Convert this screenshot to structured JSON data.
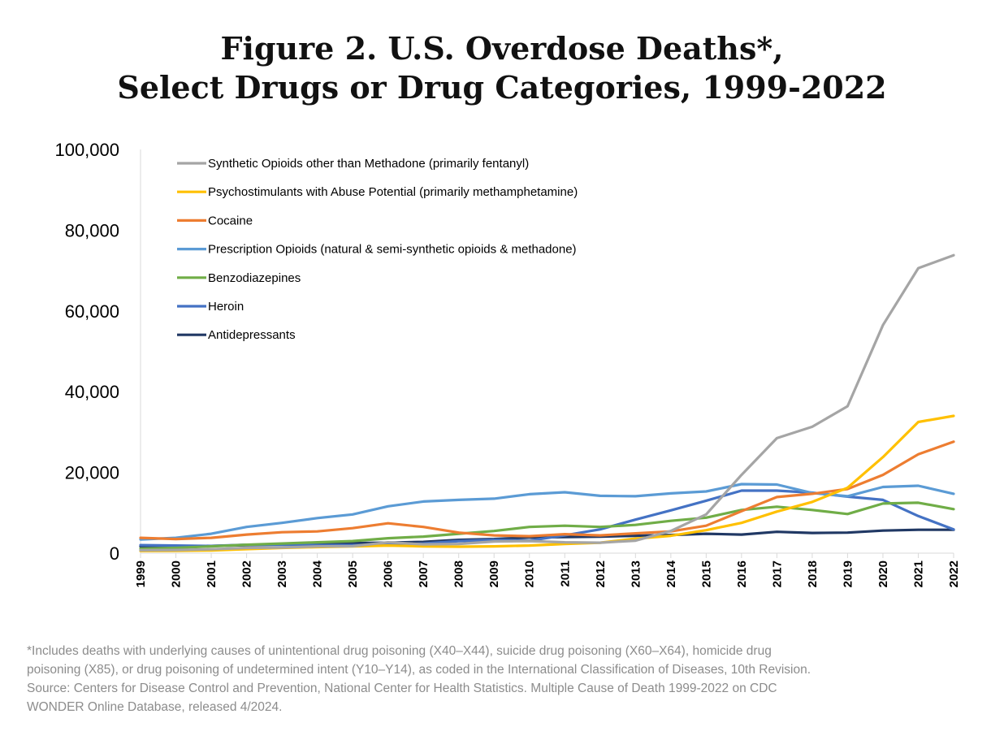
{
  "title_lines": [
    "Figure 2. U.S. Overdose Deaths*,",
    "Select Drugs or Drug Categories, 1999-2022"
  ],
  "footnote_lines": [
    "*Includes deaths with underlying causes of unintentional drug poisoning (X40–X44), suicide drug poisoning (X60–X64), homicide drug",
    "poisoning (X85), or drug poisoning of undetermined intent (Y10–Y14), as coded in the International Classification of Diseases, 10th Revision.",
    "Source: Centers for Disease Control and Prevention, National Center for Health Statistics. Multiple Cause of Death 1999-2022 on CDC",
    "WONDER Online Database, released 4/2024."
  ],
  "chart_data": {
    "type": "line",
    "title": "Figure 2. U.S. Overdose Deaths*, Select Drugs or Drug Categories, 1999-2022",
    "xlabel": "",
    "ylabel": "",
    "ylim": [
      0,
      100000
    ],
    "yticks": [
      0,
      20000,
      40000,
      60000,
      80000,
      100000
    ],
    "ytick_labels": [
      "0",
      "20,000",
      "40,000",
      "60,000",
      "80,000",
      "100,000"
    ],
    "grid": false,
    "legend_position": "top-left",
    "x": [
      "1999",
      "2000",
      "2001",
      "2002",
      "2003",
      "2004",
      "2005",
      "2006",
      "2007",
      "2008",
      "2009",
      "2010",
      "2011",
      "2012",
      "2013",
      "2014",
      "2015",
      "2016",
      "2017",
      "2018",
      "2019",
      "2020",
      "2021",
      "2022"
    ],
    "series": [
      {
        "name": "Synthetic Opioids other than Methadone (primarily fentanyl)",
        "color": "#a5a5a5",
        "values": [
          730,
          780,
          960,
          1300,
          1400,
          1660,
          1740,
          2700,
          2200,
          2300,
          2900,
          3000,
          2700,
          2600,
          3100,
          5500,
          9600,
          19400,
          28500,
          31300,
          36400,
          56500,
          70600,
          73800
        ]
      },
      {
        "name": "Psychostimulants with Abuse Potential (primarily methamphetamine)",
        "color": "#ffc000",
        "values": [
          550,
          580,
          680,
          1000,
          1300,
          1500,
          1700,
          1900,
          1700,
          1600,
          1700,
          1900,
          2300,
          2600,
          3600,
          4300,
          5700,
          7500,
          10300,
          12700,
          16200,
          23800,
          32500,
          34000
        ]
      },
      {
        "name": "Cocaine",
        "color": "#ed7d31",
        "values": [
          3800,
          3500,
          3800,
          4600,
          5200,
          5400,
          6200,
          7400,
          6500,
          5100,
          4400,
          4200,
          4700,
          4400,
          4900,
          5400,
          6800,
          10400,
          13900,
          14700,
          15900,
          19400,
          24500,
          27600
        ]
      },
      {
        "name": "Prescription Opioids (natural & semi-synthetic opioids & methadone)",
        "color": "#5b9bd5",
        "values": [
          3400,
          3800,
          4800,
          6500,
          7500,
          8700,
          9600,
          11600,
          12800,
          13200,
          13500,
          14600,
          15100,
          14200,
          14100,
          14800,
          15300,
          17100,
          17000,
          14900,
          14100,
          16400,
          16700,
          14700
        ]
      },
      {
        "name": "Benzodiazepines",
        "color": "#70ad47",
        "values": [
          1100,
          1300,
          1700,
          2100,
          2400,
          2700,
          3000,
          3700,
          4100,
          4800,
          5500,
          6500,
          6800,
          6500,
          7000,
          8000,
          8800,
          10700,
          11500,
          10700,
          9700,
          12300,
          12500,
          10900
        ]
      },
      {
        "name": "Heroin",
        "color": "#4472c4",
        "values": [
          2000,
          1900,
          1800,
          2100,
          2100,
          2000,
          2000,
          2100,
          2400,
          3000,
          3300,
          3100,
          4400,
          5900,
          8300,
          10600,
          13000,
          15500,
          15500,
          15000,
          14000,
          13200,
          9200,
          5900
        ]
      },
      {
        "name": "Antidepressants",
        "color": "#203864",
        "values": [
          1700,
          1700,
          1800,
          2000,
          2200,
          2400,
          2500,
          2600,
          2800,
          3300,
          3500,
          3900,
          4000,
          4100,
          4300,
          4500,
          4800,
          4600,
          5300,
          5000,
          5100,
          5600,
          5800,
          5800
        ]
      }
    ]
  }
}
